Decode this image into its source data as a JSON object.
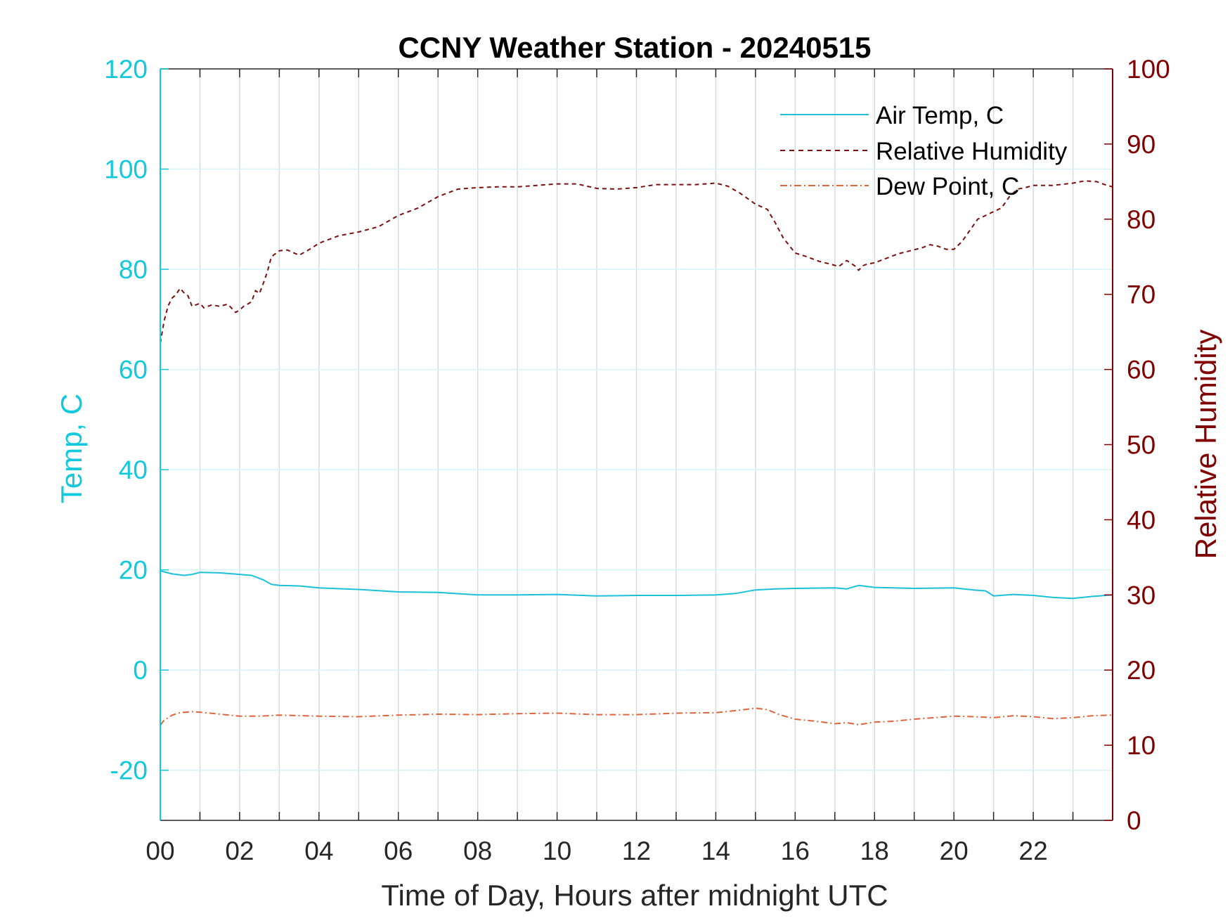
{
  "chart_data": {
    "type": "line",
    "title": "CCNY Weather Station - 20240515",
    "xlabel": "Time of Day, Hours after midnight UTC",
    "ylabel_left": "Temp, C",
    "ylabel_right": "Relative Humidity",
    "xlim": [
      0,
      24
    ],
    "ylim_left": [
      -30,
      120
    ],
    "ylim_right": [
      0,
      100
    ],
    "grid": true,
    "legend_position": "top-right",
    "x_ticks": [
      {
        "value": 0,
        "label": "00"
      },
      {
        "value": 2,
        "label": "02"
      },
      {
        "value": 4,
        "label": "04"
      },
      {
        "value": 6,
        "label": "06"
      },
      {
        "value": 8,
        "label": "08"
      },
      {
        "value": 10,
        "label": "10"
      },
      {
        "value": 12,
        "label": "12"
      },
      {
        "value": 14,
        "label": "14"
      },
      {
        "value": 16,
        "label": "16"
      },
      {
        "value": 18,
        "label": "18"
      },
      {
        "value": 20,
        "label": "20"
      },
      {
        "value": 22,
        "label": "22"
      }
    ],
    "y_left_ticks": [
      {
        "value": -20,
        "label": "-20"
      },
      {
        "value": 0,
        "label": "0"
      },
      {
        "value": 20,
        "label": "20"
      },
      {
        "value": 40,
        "label": "40"
      },
      {
        "value": 60,
        "label": "60"
      },
      {
        "value": 80,
        "label": "80"
      },
      {
        "value": 100,
        "label": "100"
      },
      {
        "value": 120,
        "label": "120"
      }
    ],
    "y_right_ticks": [
      {
        "value": 0,
        "label": "0"
      },
      {
        "value": 10,
        "label": "10"
      },
      {
        "value": 20,
        "label": "20"
      },
      {
        "value": 30,
        "label": "30"
      },
      {
        "value": 40,
        "label": "40"
      },
      {
        "value": 50,
        "label": "50"
      },
      {
        "value": 60,
        "label": "60"
      },
      {
        "value": 70,
        "label": "70"
      },
      {
        "value": 80,
        "label": "80"
      },
      {
        "value": 90,
        "label": "90"
      },
      {
        "value": 100,
        "label": "100"
      }
    ],
    "colors": {
      "temp_axis": "#12c8dc",
      "rh_axis": "#800000",
      "air_temp": "#1ac1d9",
      "rh": "#7a1010",
      "dew_point": "#e0643c",
      "grid_vertical": "#d4dce4",
      "grid_horizontal": "#d6f2f7",
      "box": "#262626"
    },
    "series": [
      {
        "name": "Air Temp, C",
        "axis": "left",
        "style": "solid",
        "x": [
          0,
          0.3,
          0.6,
          0.8,
          1.0,
          1.5,
          2.0,
          2.3,
          2.6,
          2.8,
          3.0,
          3.5,
          4.0,
          5.0,
          6.0,
          7.0,
          8.0,
          9.0,
          10.0,
          11.0,
          12.0,
          13.0,
          14.0,
          14.5,
          15.0,
          15.5,
          16.0,
          17.0,
          17.3,
          17.6,
          18.0,
          19.0,
          20.0,
          20.5,
          20.8,
          21.0,
          21.5,
          22.0,
          22.5,
          23.0,
          23.5,
          24.0
        ],
        "values": [
          19.8,
          19.2,
          18.9,
          19.1,
          19.5,
          19.4,
          19.1,
          18.9,
          18.0,
          17.1,
          16.9,
          16.8,
          16.4,
          16.1,
          15.6,
          15.5,
          15.0,
          15.0,
          15.1,
          14.8,
          14.9,
          14.9,
          15.0,
          15.3,
          16.0,
          16.2,
          16.3,
          16.4,
          16.2,
          16.9,
          16.5,
          16.3,
          16.4,
          16.0,
          15.8,
          14.8,
          15.1,
          14.9,
          14.5,
          14.3,
          14.7,
          15.0
        ]
      },
      {
        "name": "Relative Humidity",
        "axis": "right",
        "style": "dashed",
        "x": [
          0,
          0.1,
          0.2,
          0.3,
          0.4,
          0.5,
          0.6,
          0.7,
          0.8,
          0.9,
          1.0,
          1.1,
          1.3,
          1.5,
          1.7,
          1.9,
          2.0,
          2.1,
          2.3,
          2.4,
          2.5,
          2.6,
          2.7,
          2.8,
          3.0,
          3.2,
          3.5,
          3.8,
          4.0,
          4.5,
          5.0,
          5.5,
          6.0,
          6.5,
          7.0,
          7.5,
          8.0,
          8.5,
          9.0,
          9.5,
          10.0,
          10.5,
          11.0,
          11.5,
          12.0,
          12.5,
          13.0,
          13.5,
          14.0,
          14.3,
          14.6,
          15.0,
          15.3,
          15.5,
          15.7,
          16.0,
          16.3,
          16.6,
          16.9,
          17.1,
          17.3,
          17.5,
          17.6,
          17.7,
          17.8,
          18.0,
          18.3,
          18.6,
          18.9,
          19.2,
          19.4,
          19.6,
          19.8,
          20.0,
          20.2,
          20.4,
          20.6,
          20.8,
          21.0,
          21.2,
          21.4,
          21.6,
          21.8,
          22.0,
          22.5,
          23.0,
          23.3,
          23.6,
          23.8,
          24.0
        ],
        "values": [
          63.5,
          66.5,
          68.5,
          69.5,
          70.0,
          70.8,
          70.2,
          69.8,
          68.4,
          68.6,
          68.8,
          68.2,
          68.6,
          68.4,
          68.7,
          67.6,
          67.9,
          68.4,
          69.0,
          70.5,
          70.1,
          71.5,
          73.0,
          75.0,
          75.8,
          75.9,
          75.2,
          76.1,
          76.8,
          77.8,
          78.3,
          79.0,
          80.5,
          81.5,
          83.0,
          84.0,
          84.2,
          84.3,
          84.3,
          84.5,
          84.7,
          84.7,
          84.1,
          84.0,
          84.2,
          84.6,
          84.6,
          84.6,
          84.8,
          84.4,
          83.5,
          82.0,
          81.3,
          79.5,
          77.5,
          75.5,
          75.0,
          74.4,
          74.0,
          73.7,
          74.5,
          73.8,
          73.2,
          73.8,
          74.0,
          74.2,
          74.8,
          75.4,
          75.8,
          76.2,
          76.6,
          76.4,
          76.0,
          76.0,
          77.0,
          78.5,
          80.0,
          80.5,
          81.0,
          81.5,
          83.0,
          84.0,
          84.2,
          84.5,
          84.5,
          84.8,
          85.1,
          85.0,
          84.6,
          84.3
        ]
      },
      {
        "name": "Dew Point, C",
        "axis": "left",
        "style": "dash-dot",
        "x": [
          0,
          0.1,
          0.3,
          0.5,
          0.8,
          1.0,
          1.5,
          2.0,
          2.5,
          3.0,
          4.0,
          5.0,
          6.0,
          7.0,
          8.0,
          9.0,
          10.0,
          11.0,
          12.0,
          13.0,
          14.0,
          14.5,
          15.0,
          15.3,
          15.6,
          16.0,
          16.5,
          17.0,
          17.3,
          17.6,
          18.0,
          18.5,
          19.0,
          19.5,
          20.0,
          20.5,
          21.0,
          21.5,
          22.0,
          22.5,
          23.0,
          23.5,
          24.0
        ],
        "values": [
          -11.0,
          -10.0,
          -9.0,
          -8.5,
          -8.3,
          -8.4,
          -8.8,
          -9.2,
          -9.2,
          -9.0,
          -9.2,
          -9.3,
          -9.0,
          -8.8,
          -8.9,
          -8.7,
          -8.6,
          -8.9,
          -8.9,
          -8.6,
          -8.5,
          -8.1,
          -7.6,
          -7.9,
          -8.9,
          -9.8,
          -10.2,
          -10.7,
          -10.5,
          -10.9,
          -10.4,
          -10.2,
          -9.8,
          -9.5,
          -9.2,
          -9.3,
          -9.5,
          -9.1,
          -9.3,
          -9.7,
          -9.5,
          -9.1,
          -9.0
        ]
      }
    ]
  }
}
